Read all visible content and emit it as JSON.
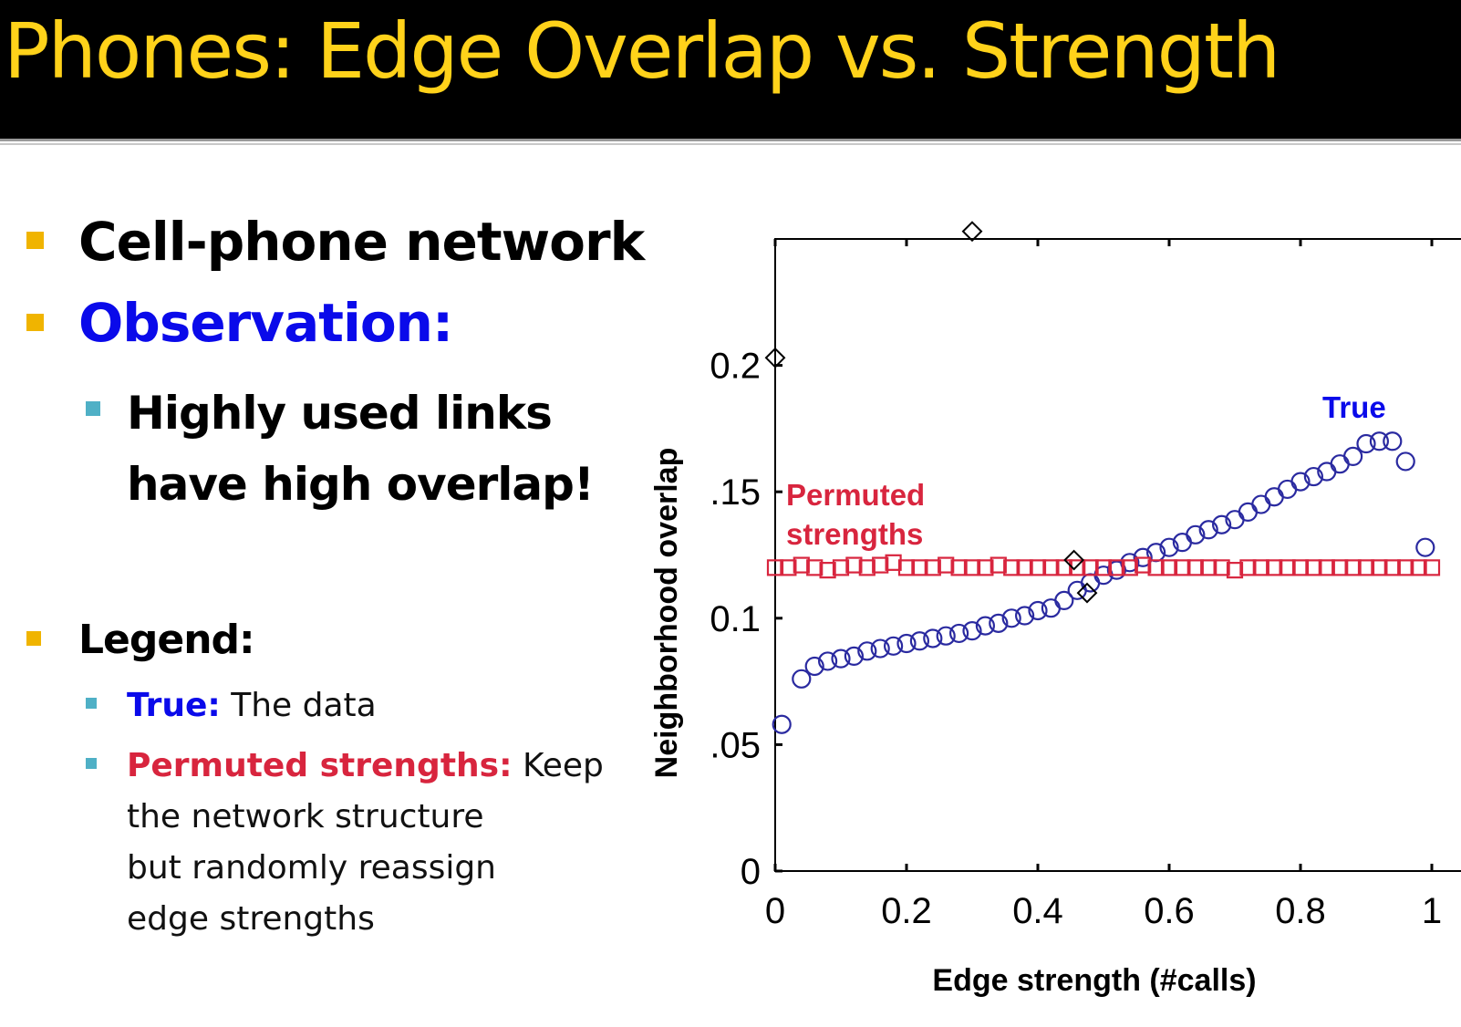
{
  "slide_title": "Phones: Edge Overlap vs. Strength",
  "colors": {
    "title_text": "#ffd21a",
    "bullet_l1": "#f0b400",
    "bullet_l2": "#4fb0c6",
    "true_blue": "#0a0aea",
    "true_series": "#2a2aa0",
    "permuted_red": "#d8253e",
    "diamond": "#000000"
  },
  "bullets": {
    "cell_phone": "Cell-phone network",
    "observation": "Observation:",
    "highly_used_1": "Highly used links",
    "highly_used_2": "have high overlap!",
    "legend": "Legend:",
    "true_label": "True:",
    "true_text": " The data",
    "permuted_label": "Permuted strengths:",
    "permuted_text_1": " Keep",
    "permuted_text_2": "the network structure",
    "permuted_text_3": "but randomly reassign",
    "permuted_text_4": "edge strengths"
  },
  "chart_data": {
    "type": "scatter",
    "xlabel": "Edge strength (#calls)",
    "ylabel": "Neighborhood  overlap",
    "xlim": [
      0,
      1
    ],
    "ylim": [
      0,
      0.25
    ],
    "x_ticks": [
      "0",
      "0.2",
      "0.4",
      "0.6",
      "0.8",
      "1"
    ],
    "y_ticks": [
      "0",
      ".05",
      "0.1",
      ".15",
      "0.2"
    ],
    "y_tick_values": [
      0,
      0.05,
      0.1,
      0.15,
      0.2
    ],
    "series": [
      {
        "name": "True",
        "marker": "circle",
        "points": [
          [
            0.01,
            0.058
          ],
          [
            0.04,
            0.076
          ],
          [
            0.06,
            0.081
          ],
          [
            0.08,
            0.083
          ],
          [
            0.1,
            0.084
          ],
          [
            0.12,
            0.085
          ],
          [
            0.14,
            0.087
          ],
          [
            0.16,
            0.088
          ],
          [
            0.18,
            0.089
          ],
          [
            0.2,
            0.09
          ],
          [
            0.22,
            0.091
          ],
          [
            0.24,
            0.092
          ],
          [
            0.26,
            0.093
          ],
          [
            0.28,
            0.094
          ],
          [
            0.3,
            0.095
          ],
          [
            0.32,
            0.097
          ],
          [
            0.34,
            0.098
          ],
          [
            0.36,
            0.1
          ],
          [
            0.38,
            0.101
          ],
          [
            0.4,
            0.103
          ],
          [
            0.42,
            0.104
          ],
          [
            0.44,
            0.107
          ],
          [
            0.46,
            0.111
          ],
          [
            0.48,
            0.114
          ],
          [
            0.5,
            0.117
          ],
          [
            0.52,
            0.119
          ],
          [
            0.54,
            0.122
          ],
          [
            0.56,
            0.124
          ],
          [
            0.58,
            0.126
          ],
          [
            0.6,
            0.128
          ],
          [
            0.62,
            0.13
          ],
          [
            0.64,
            0.133
          ],
          [
            0.66,
            0.135
          ],
          [
            0.68,
            0.137
          ],
          [
            0.7,
            0.139
          ],
          [
            0.72,
            0.142
          ],
          [
            0.74,
            0.145
          ],
          [
            0.76,
            0.148
          ],
          [
            0.78,
            0.151
          ],
          [
            0.8,
            0.154
          ],
          [
            0.82,
            0.156
          ],
          [
            0.84,
            0.158
          ],
          [
            0.86,
            0.161
          ],
          [
            0.88,
            0.164
          ],
          [
            0.9,
            0.169
          ],
          [
            0.92,
            0.17
          ],
          [
            0.94,
            0.17
          ],
          [
            0.96,
            0.162
          ],
          [
            0.99,
            0.128
          ]
        ]
      },
      {
        "name": "Permuted strengths",
        "marker": "square",
        "points": [
          [
            0.0,
            0.12
          ],
          [
            0.02,
            0.12
          ],
          [
            0.04,
            0.121
          ],
          [
            0.06,
            0.12
          ],
          [
            0.08,
            0.119
          ],
          [
            0.1,
            0.12
          ],
          [
            0.12,
            0.121
          ],
          [
            0.14,
            0.12
          ],
          [
            0.16,
            0.121
          ],
          [
            0.18,
            0.122
          ],
          [
            0.2,
            0.12
          ],
          [
            0.22,
            0.12
          ],
          [
            0.24,
            0.12
          ],
          [
            0.26,
            0.121
          ],
          [
            0.28,
            0.12
          ],
          [
            0.3,
            0.12
          ],
          [
            0.32,
            0.12
          ],
          [
            0.34,
            0.121
          ],
          [
            0.36,
            0.12
          ],
          [
            0.38,
            0.12
          ],
          [
            0.4,
            0.12
          ],
          [
            0.42,
            0.12
          ],
          [
            0.44,
            0.12
          ],
          [
            0.46,
            0.12
          ],
          [
            0.48,
            0.12
          ],
          [
            0.5,
            0.12
          ],
          [
            0.52,
            0.12
          ],
          [
            0.54,
            0.12
          ],
          [
            0.56,
            0.121
          ],
          [
            0.58,
            0.12
          ],
          [
            0.6,
            0.12
          ],
          [
            0.62,
            0.12
          ],
          [
            0.64,
            0.12
          ],
          [
            0.66,
            0.12
          ],
          [
            0.68,
            0.12
          ],
          [
            0.7,
            0.119
          ],
          [
            0.72,
            0.12
          ],
          [
            0.74,
            0.12
          ],
          [
            0.76,
            0.12
          ],
          [
            0.78,
            0.12
          ],
          [
            0.8,
            0.12
          ],
          [
            0.82,
            0.12
          ],
          [
            0.84,
            0.12
          ],
          [
            0.86,
            0.12
          ],
          [
            0.88,
            0.12
          ],
          [
            0.9,
            0.12
          ],
          [
            0.92,
            0.12
          ],
          [
            0.94,
            0.12
          ],
          [
            0.96,
            0.12
          ],
          [
            0.98,
            0.12
          ],
          [
            1.0,
            0.12
          ]
        ]
      },
      {
        "marker": "diamond",
        "points": [
          [
            0.0,
            0.203
          ],
          [
            0.3,
            0.253
          ],
          [
            0.455,
            0.123
          ],
          [
            0.475,
            0.11
          ]
        ]
      }
    ],
    "annotations": [
      {
        "text": "True",
        "color": "#0a0aea"
      },
      {
        "text": "Permuted",
        "color": "#d8253e"
      },
      {
        "text": "strengths",
        "color": "#d8253e"
      }
    ]
  }
}
